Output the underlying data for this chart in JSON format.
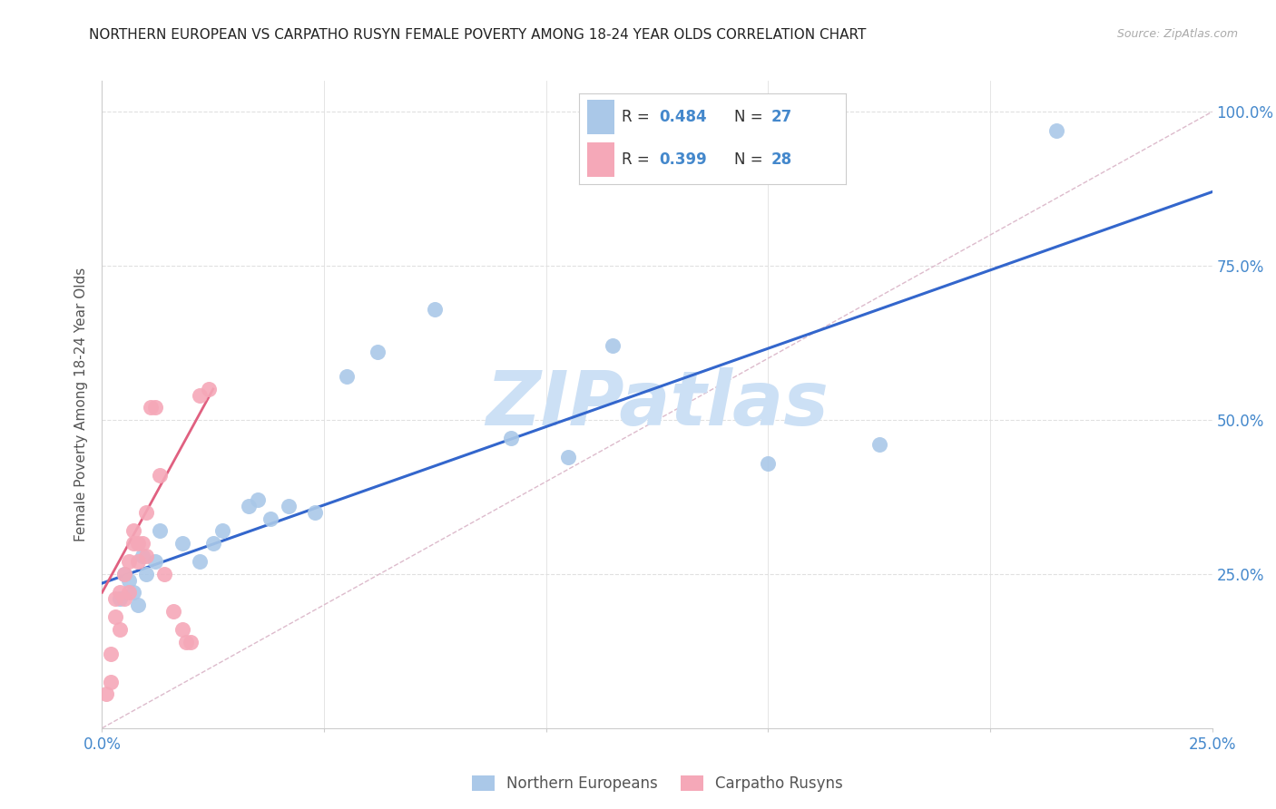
{
  "title": "NORTHERN EUROPEAN VS CARPATHO RUSYN FEMALE POVERTY AMONG 18-24 YEAR OLDS CORRELATION CHART",
  "source": "Source: ZipAtlas.com",
  "ylabel": "Female Poverty Among 18-24 Year Olds",
  "xlim": [
    0.0,
    0.25
  ],
  "ylim": [
    0.0,
    1.05
  ],
  "legend_r_blue": "0.484",
  "legend_n_blue": "27",
  "legend_r_pink": "0.399",
  "legend_n_pink": "28",
  "legend_label_blue": "Northern Europeans",
  "legend_label_pink": "Carpatho Rusyns",
  "blue_scatter_x": [
    0.004,
    0.005,
    0.006,
    0.007,
    0.008,
    0.009,
    0.01,
    0.012,
    0.013,
    0.018,
    0.022,
    0.025,
    0.027,
    0.033,
    0.035,
    0.038,
    0.042,
    0.048,
    0.055,
    0.062,
    0.075,
    0.092,
    0.105,
    0.115,
    0.15,
    0.175,
    0.215
  ],
  "blue_scatter_y": [
    0.21,
    0.25,
    0.24,
    0.22,
    0.2,
    0.28,
    0.25,
    0.27,
    0.32,
    0.3,
    0.27,
    0.3,
    0.32,
    0.36,
    0.37,
    0.34,
    0.36,
    0.35,
    0.57,
    0.61,
    0.68,
    0.47,
    0.44,
    0.62,
    0.43,
    0.46,
    0.97
  ],
  "pink_scatter_x": [
    0.001,
    0.002,
    0.002,
    0.003,
    0.003,
    0.004,
    0.004,
    0.005,
    0.005,
    0.006,
    0.006,
    0.007,
    0.007,
    0.008,
    0.008,
    0.009,
    0.01,
    0.01,
    0.011,
    0.012,
    0.013,
    0.014,
    0.016,
    0.018,
    0.019,
    0.02,
    0.022,
    0.024
  ],
  "pink_scatter_y": [
    0.055,
    0.075,
    0.12,
    0.18,
    0.21,
    0.16,
    0.22,
    0.21,
    0.25,
    0.22,
    0.27,
    0.3,
    0.32,
    0.27,
    0.3,
    0.3,
    0.28,
    0.35,
    0.52,
    0.52,
    0.41,
    0.25,
    0.19,
    0.16,
    0.14,
    0.14,
    0.54,
    0.55
  ],
  "blue_line_x": [
    0.0,
    0.25
  ],
  "blue_line_y": [
    0.235,
    0.87
  ],
  "pink_line_x": [
    0.0,
    0.025
  ],
  "pink_line_y": [
    0.22,
    0.55
  ],
  "diag_line_x": [
    0.0,
    0.25
  ],
  "diag_line_y": [
    0.0,
    1.0
  ],
  "scatter_blue_color": "#aac8e8",
  "scatter_pink_color": "#f5a8b8",
  "line_blue_color": "#3366cc",
  "line_pink_color": "#e06080",
  "diag_line_color": "#ddbbcc",
  "background_color": "#ffffff",
  "grid_color": "#e0e0e0",
  "title_color": "#222222",
  "axis_label_color": "#555555",
  "tick_color": "#4488cc",
  "watermark": "ZIPatlas",
  "watermark_color": "#cce0f5"
}
